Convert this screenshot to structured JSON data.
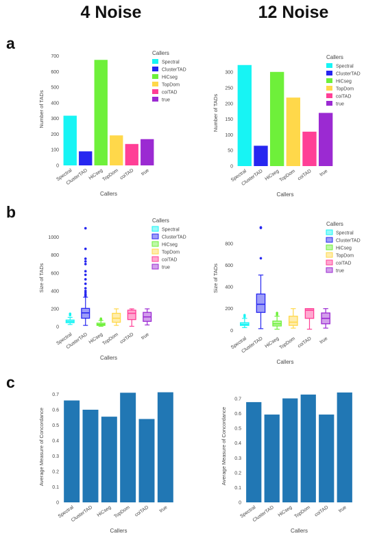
{
  "columns": [
    "4 Noise",
    "12 Noise"
  ],
  "panel_labels": [
    "a",
    "b",
    "c"
  ],
  "legend_title": "Callers",
  "colors": {
    "Spectral": "#17f4f4",
    "ClusterTAD": "#2626f0",
    "HiCseg": "#6ef03a",
    "TopDom": "#ffd84a",
    "coiTAD": "#ff3f96",
    "true": "#9b2ad2",
    "concordance_bar": "#2177b4"
  },
  "chart_data": [
    {
      "type": "bar",
      "panel": "a",
      "column": "4 Noise",
      "categories": [
        "Spectral",
        "ClusterTAD",
        "HiCseg",
        "TopDom",
        "coiTAD",
        "true"
      ],
      "values": [
        318,
        90,
        675,
        192,
        137,
        168
      ],
      "xlabel": "Callers",
      "ylabel": "Number of TADs",
      "ylim": [
        0,
        720
      ],
      "yticks": [
        0,
        100,
        200,
        300,
        400,
        500,
        600,
        700
      ],
      "legend": {
        "title": "Callers",
        "placement": "right"
      }
    },
    {
      "type": "bar",
      "panel": "a",
      "column": "12 Noise",
      "categories": [
        "Spectral",
        "ClusterTAD",
        "HiCseg",
        "TopDom",
        "coiTAD",
        "true"
      ],
      "values": [
        323,
        65,
        301,
        219,
        110,
        170
      ],
      "xlabel": "Callers",
      "ylabel": "Number of TADs",
      "ylim": [
        0,
        340
      ],
      "yticks": [
        0,
        50,
        100,
        150,
        200,
        250,
        300
      ],
      "legend": {
        "title": "Callers",
        "placement": "right"
      }
    },
    {
      "type": "box",
      "panel": "b",
      "column": "4 Noise",
      "categories": [
        "Spectral",
        "ClusterTAD",
        "HiCseg",
        "TopDom",
        "coiTAD",
        "true"
      ],
      "boxes": [
        {
          "name": "Spectral",
          "min": 25,
          "q1": 45,
          "median": 58,
          "q3": 75,
          "max": 105,
          "outliers": [
            130,
            145
          ]
        },
        {
          "name": "ClusterTAD",
          "min": 15,
          "q1": 95,
          "median": 155,
          "q3": 205,
          "max": 330,
          "outliers": [
            345,
            360,
            380,
            400,
            430,
            480,
            530,
            580,
            620,
            700,
            730,
            760,
            870,
            1100
          ]
        },
        {
          "name": "HiCseg",
          "min": 5,
          "q1": 15,
          "median": 25,
          "q3": 40,
          "max": 70,
          "outliers": [
            80,
            90
          ]
        },
        {
          "name": "TopDom",
          "min": 15,
          "q1": 50,
          "median": 95,
          "q3": 150,
          "max": 200,
          "outliers": []
        },
        {
          "name": "coiTAD",
          "min": 5,
          "q1": 80,
          "median": 150,
          "q3": 185,
          "max": 200,
          "outliers": []
        },
        {
          "name": "true",
          "min": 20,
          "q1": 60,
          "median": 110,
          "q3": 160,
          "max": 200,
          "outliers": []
        }
      ],
      "xlabel": "Callers",
      "ylabel": "Size of TADs",
      "ylim": [
        -30,
        1120
      ],
      "yticks": [
        0,
        200,
        400,
        600,
        800,
        1000
      ],
      "legend": {
        "title": "Callers",
        "placement": "right"
      }
    },
    {
      "type": "box",
      "panel": "b",
      "column": "12 Noise",
      "categories": [
        "Spectral",
        "ClusterTAD",
        "HiCseg",
        "TopDom",
        "coiTAD",
        "true"
      ],
      "boxes": [
        {
          "name": "Spectral",
          "min": 25,
          "q1": 45,
          "median": 55,
          "q3": 70,
          "max": 110,
          "outliers": [
            125,
            140
          ]
        },
        {
          "name": "ClusterTAD",
          "min": 15,
          "q1": 165,
          "median": 240,
          "q3": 335,
          "max": 510,
          "outliers": [
            665,
            945,
            950
          ]
        },
        {
          "name": "HiCseg",
          "min": 10,
          "q1": 40,
          "median": 60,
          "q3": 85,
          "max": 130,
          "outliers": [
            145,
            160
          ]
        },
        {
          "name": "TopDom",
          "min": 20,
          "q1": 45,
          "median": 75,
          "q3": 130,
          "max": 200,
          "outliers": []
        },
        {
          "name": "coiTAD",
          "min": 10,
          "q1": 110,
          "median": 185,
          "q3": 200,
          "max": 200,
          "outliers": []
        },
        {
          "name": "true",
          "min": 20,
          "q1": 60,
          "median": 110,
          "q3": 160,
          "max": 200,
          "outliers": []
        }
      ],
      "xlabel": "Callers",
      "ylabel": "Size of TADs",
      "ylim": [
        -30,
        990
      ],
      "yticks": [
        0,
        200,
        400,
        600,
        800
      ],
      "legend": {
        "title": "Callers",
        "placement": "right"
      }
    },
    {
      "type": "bar",
      "panel": "c",
      "column": "4 Noise",
      "categories": [
        "Spectral",
        "ClusterTAD",
        "HiCseg",
        "TopDom",
        "coiTAD",
        "true"
      ],
      "values": [
        0.66,
        0.6,
        0.555,
        0.71,
        0.54,
        0.713
      ],
      "xlabel": "Callers",
      "ylabel": "Average Measure of Concordance",
      "ylim": [
        0,
        0.72
      ],
      "yticks": [
        0,
        0.1,
        0.2,
        0.3,
        0.4,
        0.5,
        0.6,
        0.7
      ],
      "yticklabels": [
        "0",
        "0.1",
        "0.2",
        "0.3",
        "0.4",
        "0.5",
        "0.6",
        "0.7"
      ]
    },
    {
      "type": "bar",
      "panel": "c",
      "column": "12 Noise",
      "categories": [
        "Spectral",
        "ClusterTAD",
        "HiCseg",
        "TopDom",
        "coiTAD",
        "true"
      ],
      "values": [
        0.677,
        0.593,
        0.702,
        0.728,
        0.593,
        0.742
      ],
      "xlabel": "Callers",
      "ylabel": "Average Measure of Concordance",
      "ylim": [
        0,
        0.76
      ],
      "yticks": [
        0,
        0.1,
        0.2,
        0.3,
        0.4,
        0.5,
        0.6,
        0.7
      ],
      "yticklabels": [
        "0",
        "0.1",
        "0.2",
        "0.3",
        "0.4",
        "0.5",
        "0.6",
        "0.7"
      ]
    }
  ]
}
